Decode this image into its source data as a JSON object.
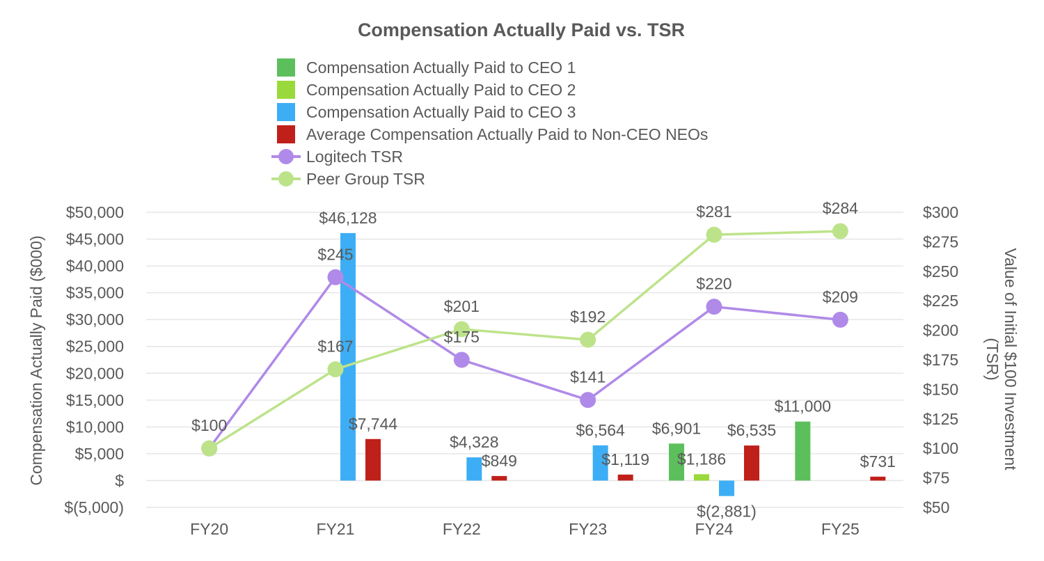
{
  "chart_data": {
    "type": "bar",
    "title": "Compensation Actually Paid vs. TSR",
    "categories": [
      "FY20",
      "FY21",
      "FY22",
      "FY23",
      "FY24",
      "FY25"
    ],
    "ylabel": "Compensation Actually Paid ($000)",
    "y2label_line1": "Value of Initial $100 Investment",
    "y2label_line2": "(TSR)",
    "ylim": [
      -5000,
      50000
    ],
    "y2lim": [
      50,
      300
    ],
    "yticks": [
      {
        "v": 50000,
        "t": "$50,000"
      },
      {
        "v": 45000,
        "t": "$45,000"
      },
      {
        "v": 40000,
        "t": "$40,000"
      },
      {
        "v": 35000,
        "t": "$35,000"
      },
      {
        "v": 30000,
        "t": "$30,000"
      },
      {
        "v": 25000,
        "t": "$25,000"
      },
      {
        "v": 20000,
        "t": "$20,000"
      },
      {
        "v": 15000,
        "t": "$15,000"
      },
      {
        "v": 10000,
        "t": "$10,000"
      },
      {
        "v": 5000,
        "t": "$5,000"
      },
      {
        "v": 0,
        "t": "$"
      },
      {
        "v": -5000,
        "t": "$(5,000)"
      }
    ],
    "y2ticks": [
      {
        "v": 300,
        "t": "$300"
      },
      {
        "v": 275,
        "t": "$275"
      },
      {
        "v": 250,
        "t": "$250"
      },
      {
        "v": 225,
        "t": "$225"
      },
      {
        "v": 200,
        "t": "$200"
      },
      {
        "v": 175,
        "t": "$175"
      },
      {
        "v": 150,
        "t": "$150"
      },
      {
        "v": 125,
        "t": "$125"
      },
      {
        "v": 100,
        "t": "$100"
      },
      {
        "v": 75,
        "t": "$75"
      },
      {
        "v": 50,
        "t": "$50"
      }
    ],
    "bar_series": [
      {
        "name": "Compensation Actually Paid to CEO 1",
        "color": "#5cbf5c",
        "values": [
          null,
          null,
          null,
          null,
          6901,
          11000
        ],
        "labels": [
          null,
          null,
          null,
          null,
          "$6,901",
          "$11,000"
        ]
      },
      {
        "name": "Compensation Actually Paid to CEO 2",
        "color": "#9ad93c",
        "values": [
          null,
          null,
          null,
          null,
          1186,
          null
        ],
        "labels": [
          null,
          null,
          null,
          null,
          "$1,186",
          null
        ]
      },
      {
        "name": "Compensation Actually Paid to CEO 3",
        "color": "#3daef5",
        "values": [
          null,
          46128,
          4328,
          6564,
          -2881,
          null
        ],
        "labels": [
          null,
          "$46,128",
          "$4,328",
          "$6,564",
          "$(2,881)",
          null
        ]
      },
      {
        "name": "Average Compensation Actually Paid to Non-CEO NEOs",
        "color": "#c0201a",
        "values": [
          null,
          7744,
          849,
          1119,
          6535,
          731
        ],
        "labels": [
          null,
          "$7,744",
          "$849",
          "$1,119",
          "$6,535",
          "$731"
        ]
      }
    ],
    "line_series": [
      {
        "name": "Logitech TSR",
        "color": "#b08ae8",
        "values": [
          100,
          245,
          175,
          141,
          220,
          209
        ],
        "labels": [
          "$100",
          "$245",
          "$175",
          "$141",
          "$220",
          "$209"
        ]
      },
      {
        "name": "Peer Group TSR",
        "color": "#bde38a",
        "values": [
          100,
          167,
          201,
          192,
          281,
          284
        ],
        "labels": [
          "$100",
          "$167",
          "$201",
          "$192",
          "$281",
          "$284"
        ]
      }
    ]
  }
}
